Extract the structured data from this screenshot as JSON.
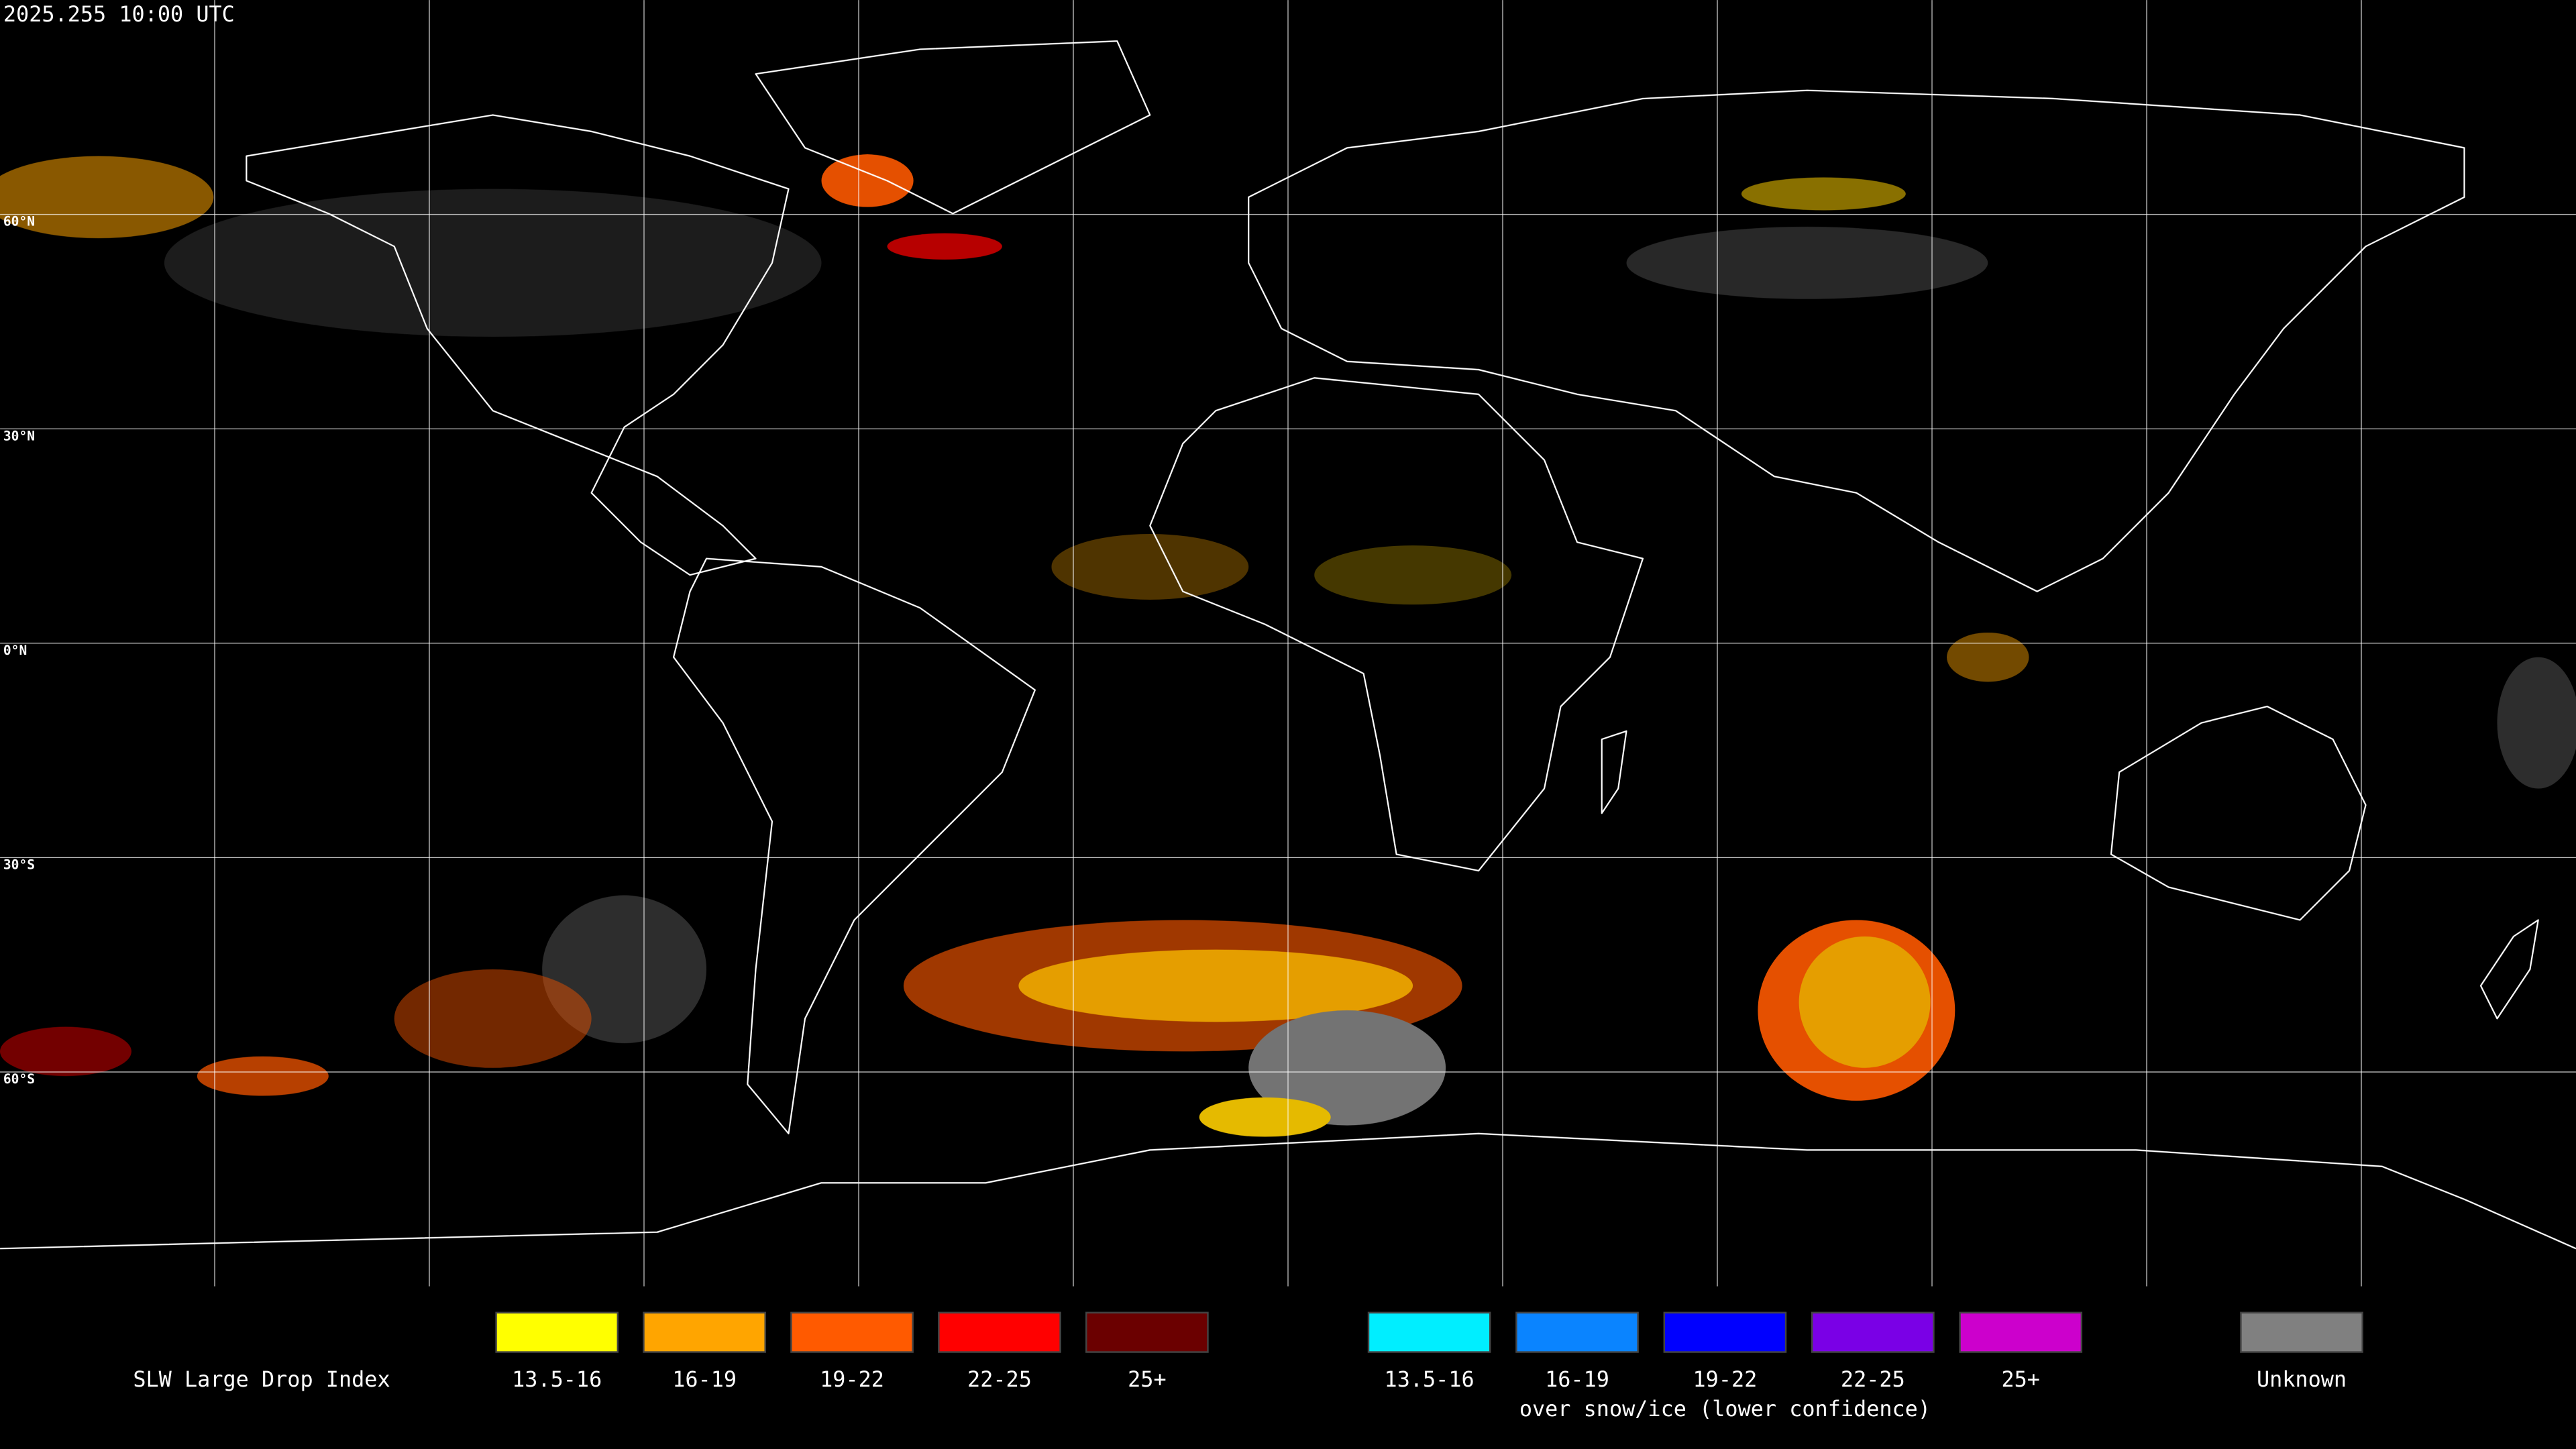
{
  "timestamp": "2025.255 10:00 UTC",
  "latitude_labels": [
    "60°N",
    "30°N",
    "0°N",
    "30°S",
    "60°S"
  ],
  "legend": {
    "title": "SLW Large Drop Index",
    "items": [
      {
        "label": "13.5-16",
        "color": "#ffff00"
      },
      {
        "label": "16-19",
        "color": "#ffa500"
      },
      {
        "label": "19-22",
        "color": "#ff5a00"
      },
      {
        "label": "22-25",
        "color": "#ff0000"
      },
      {
        "label": "25+",
        "color": "#6b0000"
      }
    ],
    "snow_ice_items": [
      {
        "label": "13.5-16",
        "color": "#00eeff"
      },
      {
        "label": "16-19",
        "color": "#0a84ff"
      },
      {
        "label": "19-22",
        "color": "#0000ff"
      },
      {
        "label": "22-25",
        "color": "#7a00e6"
      },
      {
        "label": "25+",
        "color": "#cc00cc"
      }
    ],
    "snow_ice_note": "over snow/ice (lower confidence)",
    "unknown": {
      "label": "Unknown",
      "color": "#808080"
    }
  }
}
